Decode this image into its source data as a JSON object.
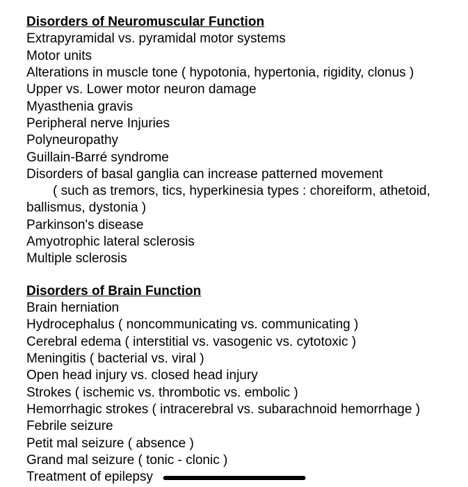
{
  "section1": {
    "heading": "Disorders of Neuromuscular Function",
    "lines": [
      "Extrapyramidal vs. pyramidal motor systems",
      "Motor units",
      "Alterations in muscle tone ( hypotonia, hypertonia, rigidity, clonus )",
      "Upper vs. Lower motor neuron damage",
      "Myasthenia gravis",
      "Peripheral nerve Injuries",
      "Polyneuropathy",
      "Guillain-Barré syndrome",
      "Disorders of basal ganglia can increase patterned movement"
    ],
    "indent_line": "( such as tremors, tics,  hyperkinesia types : choreiform, athetoid,",
    "lines_after": [
      "ballismus,  dystonia )",
      "Parkinson's disease",
      "Amyotrophic lateral sclerosis",
      "Multiple sclerosis"
    ]
  },
  "section2": {
    "heading": "Disorders of Brain Function",
    "lines": [
      "Brain herniation",
      "Hydrocephalus ( noncommunicating vs. communicating )",
      "Cerebral edema ( interstitial vs. vasogenic vs. cytotoxic )",
      "Meningitis ( bacterial vs. viral )",
      "Open head injury vs. closed head injury",
      "Strokes ( ischemic vs. thrombotic vs. embolic )",
      "Hemorrhagic strokes ( intracerebral vs. subarachnoid hemorrhage )",
      "Febrile seizure",
      "Petit mal seizure ( absence )",
      "Grand mal seizure ( tonic - clonic )",
      "Treatment of epilepsy"
    ]
  },
  "colors": {
    "text": "#000000",
    "background": "#ffffff",
    "indicator": "#000000"
  },
  "typography": {
    "font_family": "Arial",
    "font_size_pt": 14,
    "heading_weight": 700,
    "body_weight": 400
  }
}
